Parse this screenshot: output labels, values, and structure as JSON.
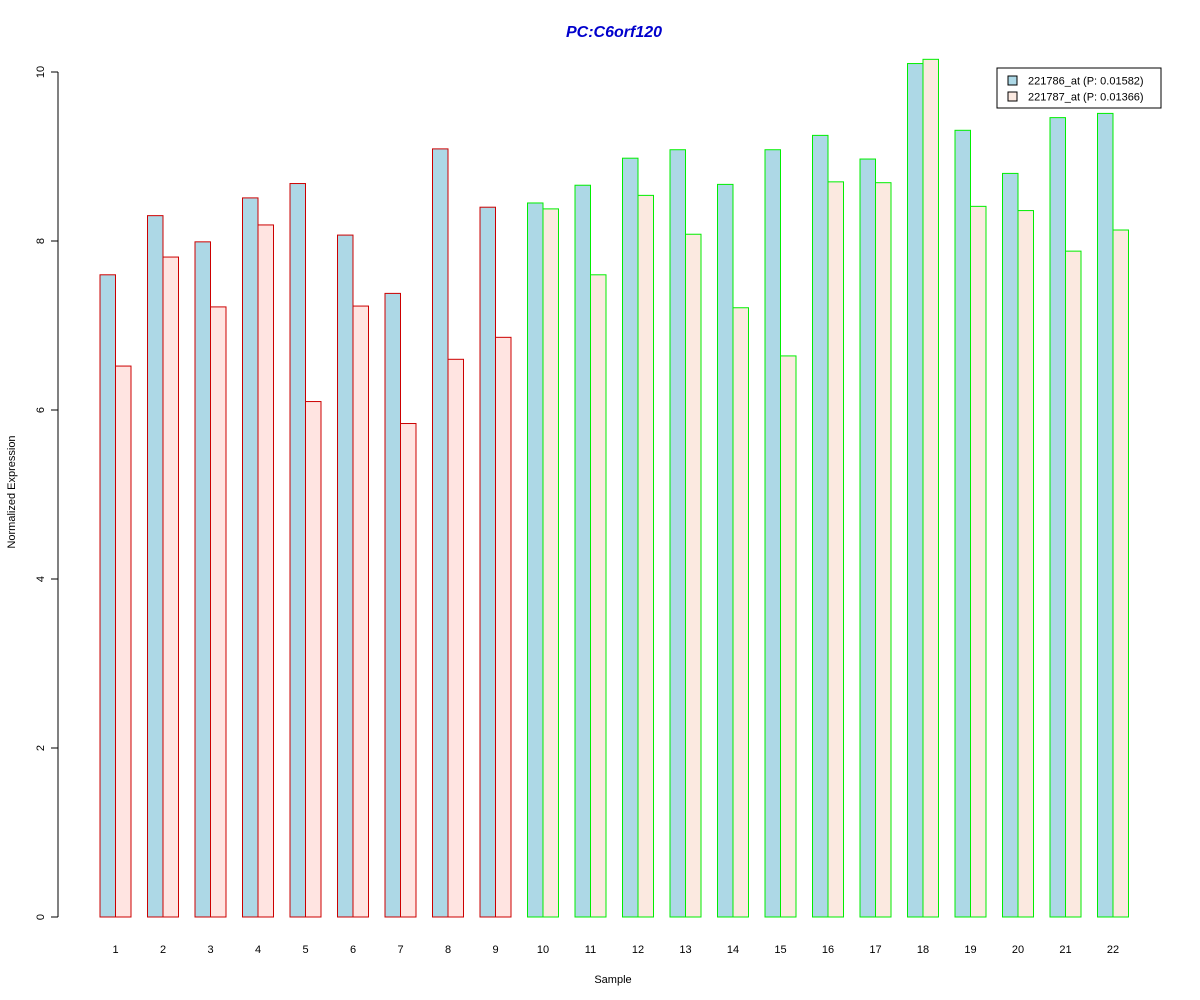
{
  "chart_data": {
    "type": "bar",
    "title": "PC:C6orf120",
    "xlabel": "Sample",
    "ylabel": "Normalized Expression",
    "ylim": [
      0,
      10
    ],
    "yticks": [
      "0",
      "2",
      "4",
      "6",
      "8",
      "10"
    ],
    "categories": [
      "1",
      "2",
      "3",
      "4",
      "5",
      "6",
      "7",
      "8",
      "9",
      "10",
      "11",
      "12",
      "13",
      "14",
      "15",
      "16",
      "17",
      "18",
      "19",
      "20",
      "21",
      "22"
    ],
    "series": [
      {
        "name": "221786_at (P: 0.01582)",
        "fill": "#add8e6",
        "values": [
          7.6,
          8.3,
          7.99,
          8.51,
          8.68,
          8.07,
          7.38,
          9.09,
          8.4,
          8.45,
          8.66,
          8.98,
          9.08,
          8.67,
          9.08,
          9.25,
          8.97,
          10.1,
          9.31,
          8.8,
          9.46,
          9.51
        ]
      },
      {
        "name": "221787_at (P: 0.01366)",
        "fill": "#ffe4e1",
        "fill_group2": "#fbe9e0",
        "values": [
          6.52,
          7.81,
          7.22,
          8.19,
          6.1,
          7.23,
          5.84,
          6.6,
          6.86,
          8.38,
          7.6,
          8.54,
          8.08,
          7.21,
          6.64,
          8.7,
          8.69,
          10.15,
          8.41,
          8.36,
          7.88,
          8.13
        ]
      }
    ],
    "group_border_colors": [
      "#cc0000",
      "#cc0000",
      "#cc0000",
      "#cc0000",
      "#cc0000",
      "#cc0000",
      "#cc0000",
      "#cc0000",
      "#cc0000",
      "#00ee00",
      "#00ee00",
      "#00ee00",
      "#00ee00",
      "#00ee00",
      "#00ee00",
      "#00ee00",
      "#00ee00",
      "#00ee00",
      "#00ee00",
      "#00ee00",
      "#00ee00",
      "#00ee00"
    ],
    "title_color": "#0000cc",
    "legend_position": "top-right",
    "grid": false
  }
}
